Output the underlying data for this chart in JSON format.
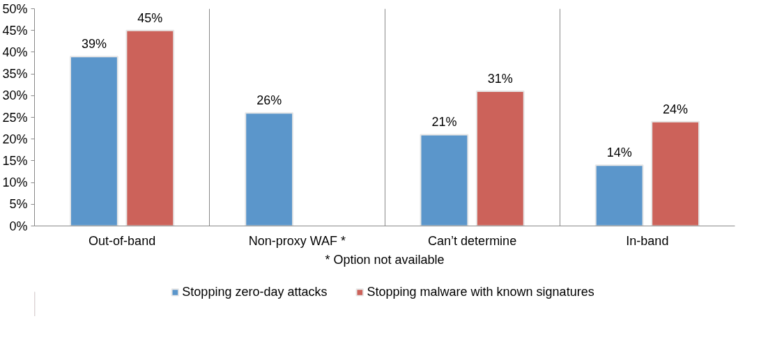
{
  "chart_data": {
    "type": "bar",
    "categories": [
      "Out-of-band",
      "Non-proxy WAF *",
      "Can’t determine",
      "In-band"
    ],
    "series": [
      {
        "name": "Stopping zero-day attacks",
        "color": "#5b96cb",
        "values": [
          39,
          26,
          21,
          14
        ],
        "value_labels": [
          "39%",
          "26%",
          "21%",
          "14%"
        ]
      },
      {
        "name": "Stopping malware with known signatures",
        "color": "#cc625a",
        "values": [
          45,
          null,
          31,
          24
        ],
        "value_labels": [
          "45%",
          null,
          "31%",
          "24%"
        ]
      }
    ],
    "ylim": [
      0,
      50
    ],
    "yticks": [
      {
        "value": 0,
        "label": "0%"
      },
      {
        "value": 5,
        "label": "5%"
      },
      {
        "value": 10,
        "label": "10%"
      },
      {
        "value": 15,
        "label": "15%"
      },
      {
        "value": 20,
        "label": "20%"
      },
      {
        "value": 25,
        "label": "25%"
      },
      {
        "value": 30,
        "label": "30%"
      },
      {
        "value": 35,
        "label": "35%"
      },
      {
        "value": 40,
        "label": "40%"
      },
      {
        "value": 45,
        "label": "45%"
      },
      {
        "value": 50,
        "label": "50%"
      }
    ],
    "annotations": [
      "* Option not available"
    ],
    "grid": "x",
    "legend": "bottom"
  }
}
